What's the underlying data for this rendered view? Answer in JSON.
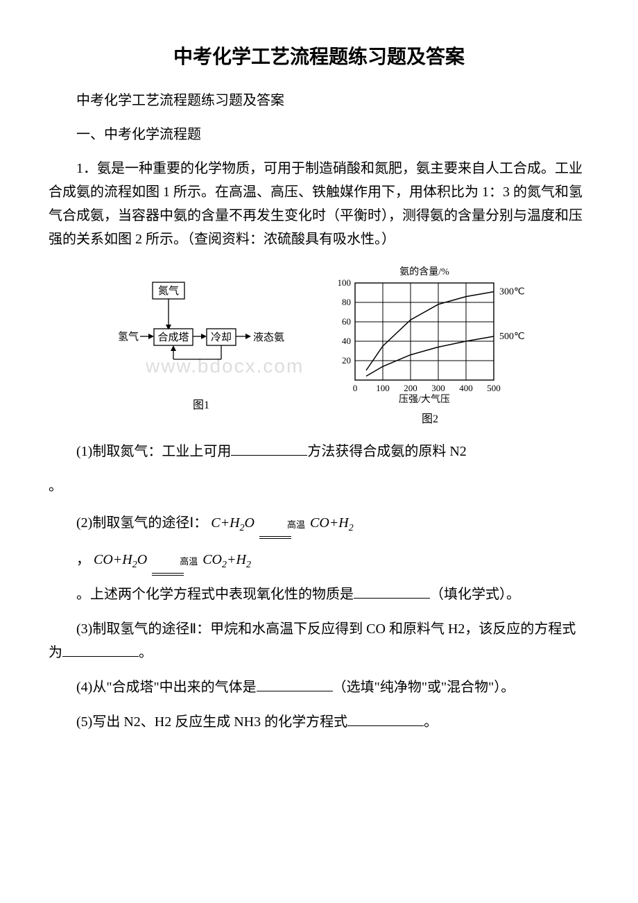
{
  "title": "中考化学工艺流程题练习题及答案",
  "subtitle": "中考化学工艺流程题练习题及答案",
  "section_header": "一、中考化学流程题",
  "q1_intro": "1．氨是一种重要的化学物质，可用于制造硝酸和氮肥，氨主要来自人工合成。工业合成氨的流程如图 1 所示。在高温、高压、铁触媒作用下，用体积比为 1：3 的氮气和氢气合成氨，当容器中氨的含量不再发生变化时（平衡时），测得氨的含量分别与温度和压强的关系如图 2 所示。（查阅资料：浓硫酸具有吸水性。）",
  "figure1": {
    "caption": "图1",
    "labels": {
      "nitrogen": "氮气",
      "hydrogen": "氢气",
      "tower": "合成塔",
      "cool": "冷却",
      "liquid_ammonia": "液态氨"
    }
  },
  "figure2": {
    "caption": "图2",
    "type": "line",
    "y_label": "氨的含量/%",
    "x_label": "压强/大气压",
    "y_ticks": [
      0,
      20,
      40,
      60,
      80,
      100
    ],
    "x_ticks": [
      0,
      100,
      200,
      300,
      400,
      500
    ],
    "xlim": [
      0,
      500
    ],
    "ylim": [
      0,
      100
    ],
    "series": [
      {
        "label": "300℃",
        "color": "#000000",
        "line_width": 1.5,
        "points": [
          [
            40,
            10
          ],
          [
            100,
            35
          ],
          [
            200,
            62
          ],
          [
            300,
            78
          ],
          [
            400,
            86
          ],
          [
            500,
            91
          ]
        ]
      },
      {
        "label": "500℃",
        "color": "#000000",
        "line_width": 1.5,
        "points": [
          [
            40,
            4
          ],
          [
            100,
            14
          ],
          [
            200,
            26
          ],
          [
            300,
            34
          ],
          [
            400,
            40
          ],
          [
            500,
            45
          ]
        ]
      }
    ],
    "grid_color": "#000000",
    "background_color": "#ffffff",
    "label_fontsize": 14
  },
  "watermark": "www.bdocx.com",
  "q1_1_pre": "(1)制取氮气：工业上可用",
  "q1_1_post": "方法获得合成氨的原料 N2",
  "q1_1_end": "。",
  "q1_2_pre": "(2)制取氢气的途径Ⅰ：",
  "eq1": {
    "lhs_c": "C",
    "plus": "+",
    "h2o": "H",
    "h2o_sub": "2",
    "o": "O",
    "cond": "高温",
    "rhs_co": "CO",
    "rhs_plus": "+",
    "rhs_h": "H",
    "rhs_h_sub": "2"
  },
  "eq2_pre": "，",
  "eq2": {
    "lhs_co": "CO",
    "plus": "+",
    "h2o": "H",
    "h2o_sub": "2",
    "o": "O",
    "cond": "高温",
    "rhs_co2": "CO",
    "rhs_co2_sub": "2",
    "rhs_plus": "+",
    "rhs_h": "H",
    "rhs_h_sub": "2"
  },
  "q1_2_sentence_pre": "。上述两个化学方程式中表现氧化性的物质是",
  "q1_2_sentence_post": "（填化学式）。",
  "q1_3_pre": "(3)制取氢气的途径Ⅱ：甲烷和水高温下反应得到 CO 和原料气 H2，该反应的方程式为",
  "q1_3_post": "。",
  "q1_4_pre": "(4)从\"合成塔\"中出来的气体是",
  "q1_4_post": "（选填\"纯净物\"或\"混合物\"）。",
  "q1_5_pre": "(5)写出 N2、H2 反应生成 NH3 的化学方程式",
  "q1_5_post": "。"
}
